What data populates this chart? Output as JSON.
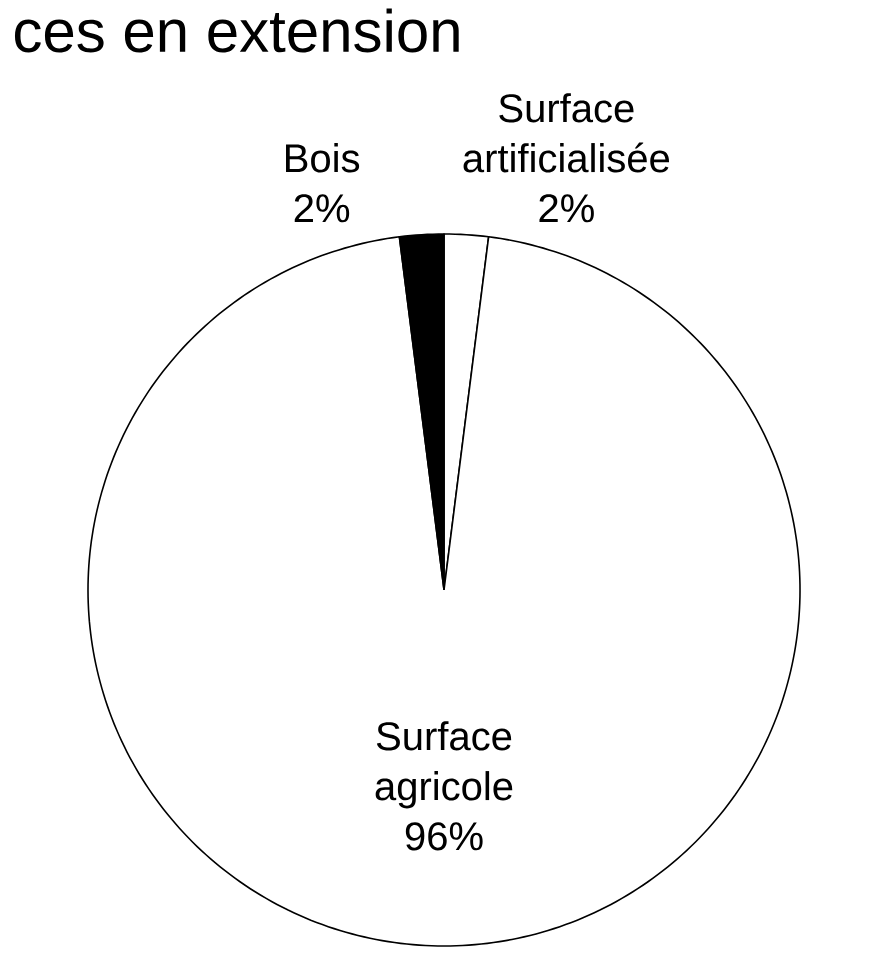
{
  "chart_data": {
    "type": "pie",
    "title": "ces en extension",
    "categories": [
      "Surface artificialisée",
      "Surface agricole",
      "Bois"
    ],
    "values": [
      2,
      96,
      2
    ],
    "value_labels": [
      "2%",
      "96%",
      "2%"
    ],
    "colors": [
      "#ffffff",
      "#ffffff",
      "#000000"
    ]
  }
}
